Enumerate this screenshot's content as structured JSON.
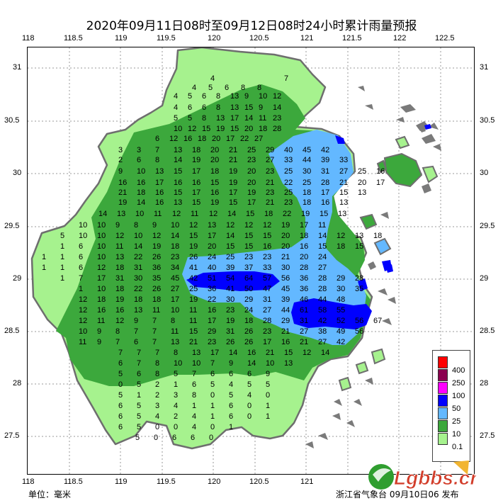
{
  "title": "2020年09月11日08时至09月12日08时24小时累计雨量预报",
  "lon_ticks": [
    "118",
    "118.5",
    "119",
    "119.5",
    "120",
    "120.5",
    "121",
    "121.5",
    "122",
    "122.5"
  ],
  "lat_ticks": [
    "31",
    "30.5",
    "30",
    "29.5",
    "29",
    "28.5",
    "28",
    "27.5"
  ],
  "unit_label": "单位：毫米",
  "issuer": "浙江省气象台 09月10日06 发布",
  "legend": [
    {
      "label": "400",
      "color": "#fe0000"
    },
    {
      "label": "250",
      "color": "#8b004f"
    },
    {
      "label": "100",
      "color": "#fe00fe"
    },
    {
      "label": "50",
      "color": "#0000fe"
    },
    {
      "label": "25",
      "color": "#63b8ff"
    },
    {
      "label": "10",
      "color": "#3ca83c"
    },
    {
      "label": "0.1",
      "color": "#a6f28e"
    }
  ],
  "watermark_text": "Lgbbs.cn",
  "colors": {
    "light_green": "#a6f28e",
    "green": "#3ca83c",
    "light_blue": "#63b8ff",
    "blue": "#0000fe",
    "outline": "#6e6e6e"
  },
  "station_values": [
    [
      "4",
      "7"
    ],
    [
      "4",
      "5",
      "6",
      "8",
      "8"
    ],
    [
      "4",
      "5",
      "6",
      "8",
      "13",
      "9",
      "10",
      "12"
    ],
    [
      "4",
      "6",
      "6",
      "8",
      "13",
      "15",
      "9",
      "14"
    ],
    [
      "5",
      "5",
      "8",
      "13",
      "17",
      "14",
      "11",
      "23"
    ],
    [
      "10",
      "12",
      "15",
      "19",
      "15",
      "20",
      "18",
      "28"
    ],
    [
      "6",
      "12",
      "16",
      "18",
      "20",
      "17",
      "22",
      "27"
    ],
    [
      "3",
      "3",
      "7",
      "13",
      "18",
      "20",
      "21",
      "25",
      "29",
      "40",
      "45",
      "42"
    ],
    [
      "2",
      "6",
      "8",
      "14",
      "19",
      "20",
      "21",
      "23",
      "27",
      "33",
      "44",
      "39",
      "33"
    ],
    [
      "9",
      "10",
      "13",
      "15",
      "17",
      "18",
      "19",
      "20",
      "23",
      "25",
      "30",
      "31",
      "27",
      "25",
      "16"
    ],
    [
      "16",
      "16",
      "17",
      "16",
      "16",
      "15",
      "19",
      "20",
      "21",
      "22",
      "25",
      "28",
      "21",
      "20",
      "17"
    ],
    [
      "21",
      "18",
      "16",
      "15",
      "17",
      "16",
      "17",
      "19",
      "23",
      "25",
      "18",
      "17",
      "15",
      "13"
    ],
    [
      "19",
      "14",
      "16",
      "13",
      "15",
      "19",
      "15",
      "17",
      "21",
      "23",
      "18",
      "16",
      "13"
    ],
    [
      "14",
      "13",
      "10",
      "11",
      "12",
      "11",
      "12",
      "14",
      "15",
      "18",
      "22",
      "19",
      "15",
      "13"
    ],
    [
      "10",
      "10",
      "9",
      "8",
      "9",
      "10",
      "12",
      "13",
      "12",
      "12",
      "12",
      "19",
      "17",
      "11"
    ],
    [
      "5",
      "10",
      "10",
      "12",
      "10",
      "12",
      "14",
      "15",
      "17",
      "14",
      "15",
      "15",
      "20",
      "18",
      "14",
      "12",
      "13",
      "18"
    ],
    [
      "1",
      "6",
      "10",
      "11",
      "14",
      "19",
      "18",
      "19",
      "20",
      "15",
      "15",
      "16",
      "20",
      "16",
      "15",
      "18",
      "15"
    ],
    [
      "1",
      "1",
      "6",
      "10",
      "13",
      "22",
      "26",
      "23",
      "26",
      "24",
      "25",
      "23",
      "23",
      "21",
      "20",
      "24"
    ],
    [
      "1",
      "1",
      "6",
      "12",
      "18",
      "31",
      "36",
      "34",
      "41",
      "40",
      "39",
      "37",
      "33",
      "30",
      "28",
      "27"
    ],
    [
      "1",
      "7",
      "17",
      "31",
      "30",
      "35",
      "45",
      "42",
      "51",
      "54",
      "64",
      "57",
      "56",
      "36",
      "28",
      "29",
      "28"
    ],
    [
      "1",
      "10",
      "18",
      "22",
      "26",
      "27",
      "25",
      "36",
      "41",
      "50",
      "47",
      "45",
      "36",
      "28",
      "30",
      "35"
    ],
    [
      "12",
      "18",
      "19",
      "18",
      "18",
      "17",
      "19",
      "22",
      "30",
      "29",
      "31",
      "39",
      "46",
      "44",
      "48"
    ],
    [
      "12",
      "16",
      "16",
      "13",
      "11",
      "10",
      "11",
      "16",
      "23",
      "24",
      "27",
      "44",
      "61",
      "58",
      "55"
    ],
    [
      "12",
      "11",
      "12",
      "9",
      "7",
      "8",
      "11",
      "17",
      "19",
      "18",
      "28",
      "29",
      "31",
      "42",
      "52",
      "56",
      "67"
    ],
    [
      "10",
      "9",
      "8",
      "7",
      "7",
      "11",
      "15",
      "29",
      "31",
      "26",
      "23",
      "21",
      "27",
      "38",
      "49",
      "56"
    ],
    [
      "11",
      "9",
      "7",
      "6",
      "7",
      "13",
      "21",
      "23",
      "26",
      "26",
      "17",
      "16",
      "21",
      "27",
      "42"
    ],
    [
      "7",
      "7",
      "7",
      "8",
      "13",
      "17",
      "14",
      "16",
      "21",
      "15",
      "12",
      "14"
    ],
    [
      "6",
      "7",
      "8",
      "10",
      "10",
      "7",
      "9",
      "14",
      "10",
      "13"
    ],
    [
      "5",
      "6",
      "8",
      "5",
      "7",
      "6",
      "6",
      "6",
      "9"
    ],
    [
      "0",
      "5",
      "2",
      "1",
      "6",
      "5",
      "4",
      "5",
      "5"
    ],
    [
      "5",
      "1",
      "2",
      "3",
      "8",
      "0",
      "5",
      "4",
      "0"
    ],
    [
      "6",
      "5",
      "3",
      "4",
      "1",
      "1",
      "6",
      "0",
      "1"
    ],
    [
      "6",
      "5",
      "4",
      "2",
      "4",
      "1",
      "6",
      "0",
      "1"
    ],
    [
      "6",
      "5",
      "0",
      "0",
      "4",
      "0",
      "1"
    ],
    [
      "5",
      "0",
      "6",
      "6",
      "0"
    ]
  ]
}
